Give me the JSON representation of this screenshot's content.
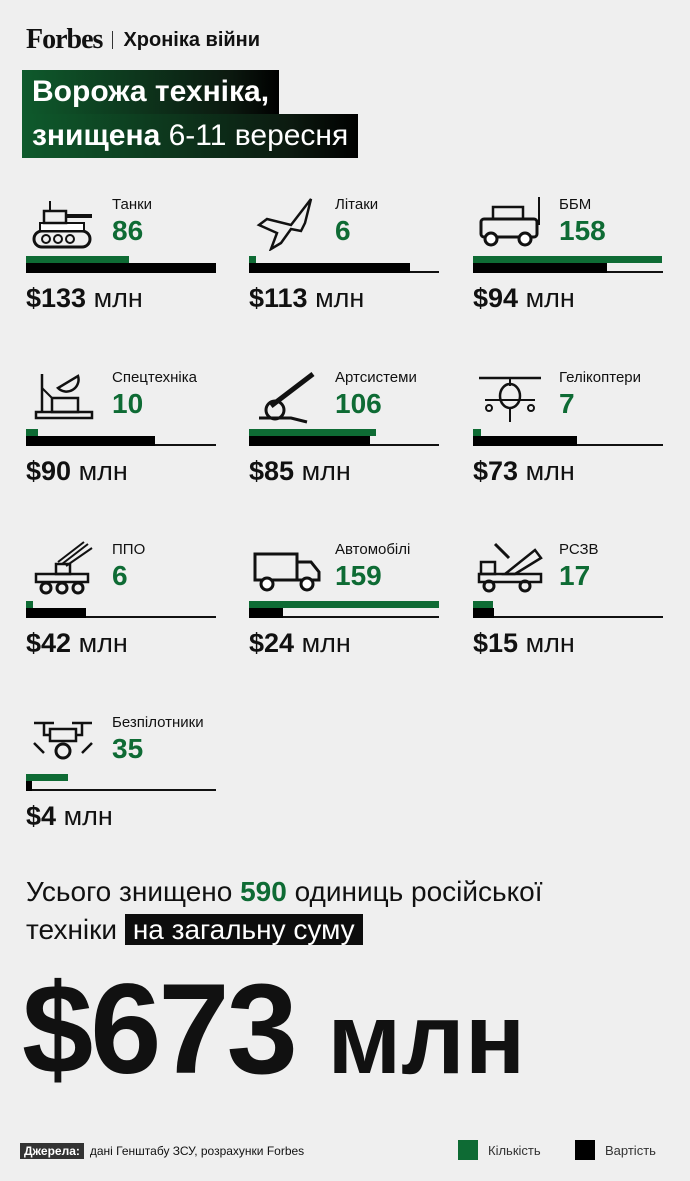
{
  "header": {
    "logo": "Forbes",
    "section": "Хроніка війни"
  },
  "title": {
    "line1": "Ворожа техніка,",
    "line2_bold": "знищена",
    "line2_thin": "6-11 вересня"
  },
  "chart_data": {
    "type": "bar",
    "categories": [
      "Танки",
      "Літаки",
      "ББМ",
      "Спецтехніка",
      "Артсистеми",
      "Гелікоптери",
      "ППО",
      "Автомобілі",
      "РСЗВ",
      "Безпілотники"
    ],
    "series": [
      {
        "name": "Кількість",
        "values": [
          86,
          6,
          158,
          10,
          106,
          7,
          6,
          159,
          17,
          35
        ]
      },
      {
        "name": "Вартість",
        "values": [
          133,
          113,
          94,
          90,
          85,
          73,
          42,
          24,
          15,
          4
        ],
        "unit": "млн $"
      }
    ],
    "items": [
      {
        "icon": "tank-icon",
        "label": "Танки",
        "count": "86",
        "cost": "$133",
        "unit": "млн"
      },
      {
        "icon": "jet-icon",
        "label": "Літаки",
        "count": "6",
        "cost": "$113",
        "unit": "млн"
      },
      {
        "icon": "armored-vehicle-icon",
        "label": "ББМ",
        "count": "158",
        "cost": "$94",
        "unit": "млн"
      },
      {
        "icon": "radar-icon",
        "label": "Спецтехніка",
        "count": "10",
        "cost": "$90",
        "unit": "млн"
      },
      {
        "icon": "artillery-icon",
        "label": "Артсистеми",
        "count": "106",
        "cost": "$85",
        "unit": "млн"
      },
      {
        "icon": "helicopter-icon",
        "label": "Гелікоптери",
        "count": "7",
        "cost": "$73",
        "unit": "млн"
      },
      {
        "icon": "air-defense-icon",
        "label": "ППО",
        "count": "6",
        "cost": "$42",
        "unit": "млн"
      },
      {
        "icon": "truck-icon",
        "label": "Автомобілі",
        "count": "159",
        "cost": "$24",
        "unit": "млн"
      },
      {
        "icon": "rocket-launcher-icon",
        "label": "РСЗВ",
        "count": "17",
        "cost": "$15",
        "unit": "млн"
      },
      {
        "icon": "drone-icon",
        "label": "Безпілотники",
        "count": "35",
        "cost": "$4",
        "unit": "млн"
      }
    ],
    "legend": "bottom-right"
  },
  "total": {
    "pre": "Усього знищено",
    "count": "590",
    "post": "одиниць російської",
    "line2": "техніки",
    "highlight": "на загальну суму",
    "amount": "$673",
    "unit": "млн"
  },
  "footer": {
    "source_label": "Джерела:",
    "source_text": "дані Генштабу ЗСУ, розрахунки Forbes",
    "legend": [
      {
        "label": "Кількість",
        "color": "#0e6b34"
      },
      {
        "label": "Вартість",
        "color": "#000000"
      }
    ]
  }
}
